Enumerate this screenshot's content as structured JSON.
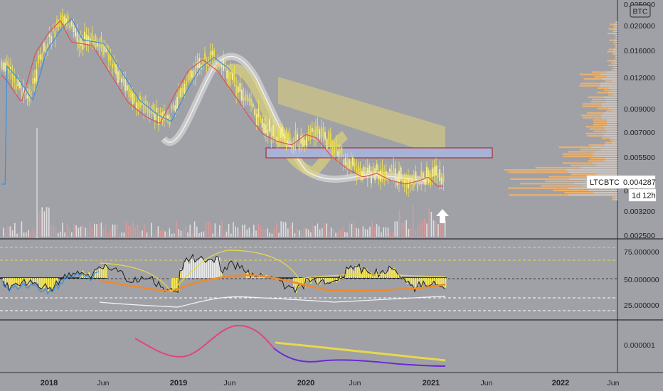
{
  "currency_badge": "BTC",
  "price_axis": [
    "0.025000",
    "0.020000",
    "0.016000",
    "0.012000",
    "0.009000",
    "0.007000",
    "0.005500",
    "0.004",
    "0.003200",
    "0.002500"
  ],
  "rsi_axis": [
    "75.000000",
    "50.000000",
    "25.000000"
  ],
  "osc_axis": [
    "0.000001"
  ],
  "time_axis": [
    {
      "label": "2018",
      "year": true
    },
    {
      "label": "Jun",
      "year": false
    },
    {
      "label": "2019",
      "year": true
    },
    {
      "label": "Jun",
      "year": false
    },
    {
      "label": "2020",
      "year": true
    },
    {
      "label": "Jun",
      "year": false
    },
    {
      "label": "2021",
      "year": true
    },
    {
      "label": "Jun",
      "year": false
    },
    {
      "label": "2022",
      "year": true
    },
    {
      "label": "Jun",
      "year": false
    }
  ],
  "last_price": {
    "symbol": "LTCBTC",
    "value": "0.004287",
    "countdown": "1d 12h"
  },
  "colors": {
    "background": "#9fa1a7",
    "candle": "#f3e55a",
    "ma_red": "#d9534f",
    "ma_blue": "#3b8fd9",
    "cloud_yellow": "#ddd27a",
    "zone_blue": "#a9b3d9",
    "volume_profile": "#f2b36a",
    "osc_pink": "#e0457f",
    "osc_purple": "#6a2bd1",
    "osc_yellow": "#e8d84a"
  }
}
